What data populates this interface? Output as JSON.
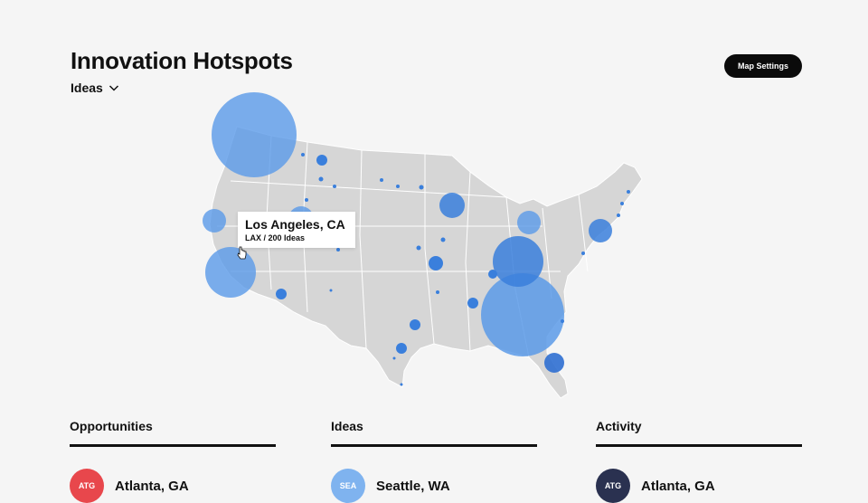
{
  "header": {
    "title": "Innovation Hotspots",
    "metric_label": "Ideas",
    "map_settings_label": "Map Settings"
  },
  "tooltip": {
    "title": "Los Angeles, CA",
    "subtitle": "LAX / 200 Ideas"
  },
  "columns": [
    {
      "header": "Opportunities",
      "top_item": {
        "code": "ATG",
        "label": "Atlanta, GA",
        "color": "#e8474c"
      }
    },
    {
      "header": "Ideas",
      "top_item": {
        "code": "SEA",
        "label": "Seattle, WA",
        "color": "#7fb3ef"
      }
    },
    {
      "header": "Activity",
      "top_item": {
        "code": "ATG",
        "label": "Atlanta, GA",
        "color": "#2a3150"
      }
    }
  ],
  "colors": {
    "map_fill": "#d6d6d6",
    "bubble": "#5a9ae8",
    "bubble_dark": "#2f6fd1",
    "background": "#f5f5f5"
  }
}
